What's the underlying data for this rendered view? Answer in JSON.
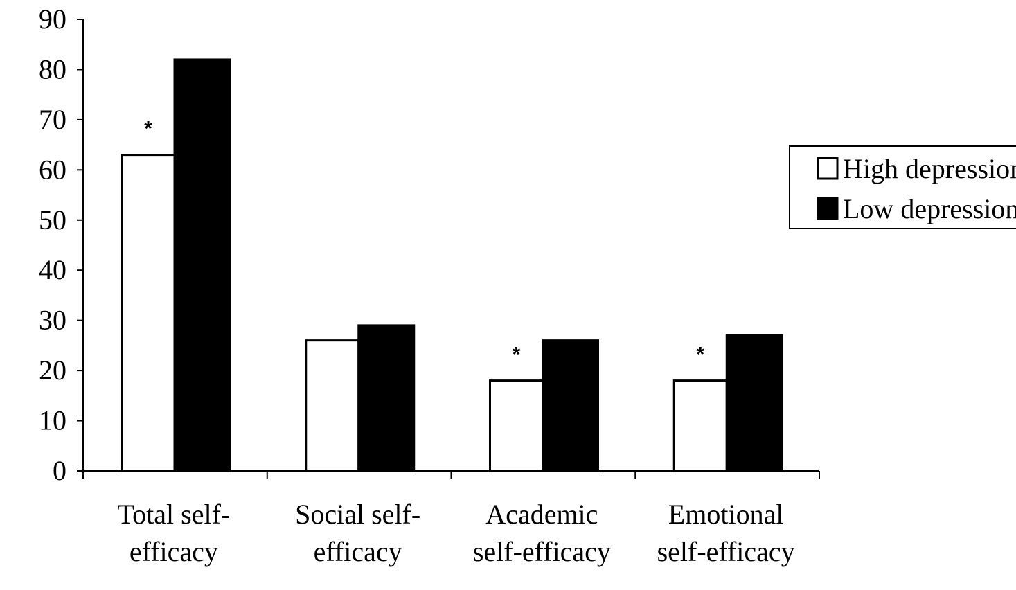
{
  "chart_data": {
    "type": "bar",
    "categories": [
      [
        "Total self-",
        "efficacy"
      ],
      [
        "Social self-",
        "efficacy"
      ],
      [
        "Academic",
        "self-efficacy"
      ],
      [
        "Emotional",
        "self-efficacy"
      ]
    ],
    "series": [
      {
        "name": "High depression",
        "values": [
          63,
          26,
          18,
          18
        ],
        "color": "#ffffff"
      },
      {
        "name": "Low depression",
        "values": [
          82,
          29,
          26,
          27
        ],
        "color": "#000000"
      }
    ],
    "significance_marks": [
      "*",
      "",
      "*",
      "*"
    ],
    "ylim": [
      0,
      90
    ],
    "yticks": [
      0,
      10,
      20,
      30,
      40,
      50,
      60,
      70,
      80,
      90
    ],
    "title": "",
    "xlabel": "",
    "ylabel": "",
    "grid": false,
    "legend": {
      "position": "right",
      "entries": [
        "High depression",
        "Low depression"
      ]
    }
  }
}
